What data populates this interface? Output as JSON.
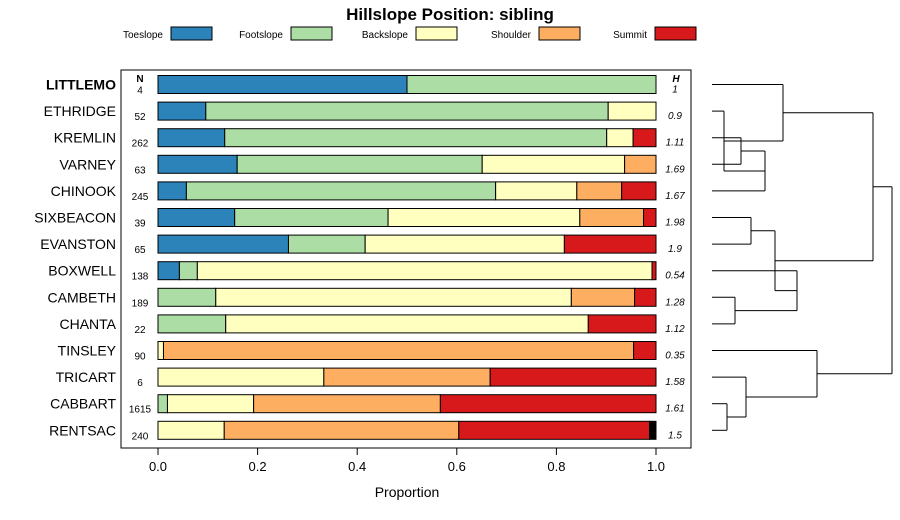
{
  "chart_data": {
    "type": "bar",
    "subtype": "stacked-horizontal",
    "title": "Hillslope Position: sibling",
    "xlabel": "Proportion",
    "ylabel": "",
    "xlim": [
      0,
      1
    ],
    "xticks": [
      "0.0",
      "0.2",
      "0.4",
      "0.6",
      "0.8",
      "1.0"
    ],
    "n_header": "N",
    "h_header": "H",
    "series": [
      {
        "name": "Toeslope",
        "color": "#2B83BA"
      },
      {
        "name": "Footslope",
        "color": "#ABDDA4"
      },
      {
        "name": "Backslope",
        "color": "#FFFFBF"
      },
      {
        "name": "Shoulder",
        "color": "#FDAE61"
      },
      {
        "name": "Summit",
        "color": "#D7191C"
      }
    ],
    "extra_color": "#000000",
    "rows": [
      {
        "label": "LITTLEMO",
        "n": "4",
        "h": "1",
        "bold": true,
        "values": [
          0.5,
          0.5,
          0.0,
          0.0,
          0.0,
          0.0
        ]
      },
      {
        "label": "ETHRIDGE",
        "n": "52",
        "h": "0.9",
        "bold": false,
        "values": [
          0.096,
          0.808,
          0.096,
          0.0,
          0.0,
          0.0
        ]
      },
      {
        "label": "KREMLIN",
        "n": "262",
        "h": "1.11",
        "bold": false,
        "values": [
          0.134,
          0.767,
          0.053,
          0.0,
          0.046,
          0.0
        ]
      },
      {
        "label": "VARNEY",
        "n": "63",
        "h": "1.69",
        "bold": false,
        "values": [
          0.159,
          0.492,
          0.286,
          0.063,
          0.0,
          0.0
        ]
      },
      {
        "label": "CHINOOK",
        "n": "245",
        "h": "1.67",
        "bold": false,
        "values": [
          0.057,
          0.621,
          0.163,
          0.09,
          0.069,
          0.0
        ]
      },
      {
        "label": "SIXBEACON",
        "n": "39",
        "h": "1.98",
        "bold": false,
        "values": [
          0.154,
          0.308,
          0.385,
          0.128,
          0.025,
          0.0
        ]
      },
      {
        "label": "EVANSTON",
        "n": "65",
        "h": "1.9",
        "bold": false,
        "values": [
          0.262,
          0.154,
          0.4,
          0.0,
          0.184,
          0.0
        ]
      },
      {
        "label": "BOXWELL",
        "n": "138",
        "h": "0.54",
        "bold": false,
        "values": [
          0.043,
          0.036,
          0.913,
          0.0,
          0.008,
          0.0
        ]
      },
      {
        "label": "CAMBETH",
        "n": "189",
        "h": "1.28",
        "bold": false,
        "values": [
          0.0,
          0.116,
          0.714,
          0.127,
          0.043,
          0.0
        ]
      },
      {
        "label": "CHANTA",
        "n": "22",
        "h": "1.12",
        "bold": false,
        "values": [
          0.0,
          0.136,
          0.728,
          0.0,
          0.136,
          0.0
        ]
      },
      {
        "label": "TINSLEY",
        "n": "90",
        "h": "0.35",
        "bold": false,
        "values": [
          0.0,
          0.0,
          0.011,
          0.944,
          0.045,
          0.0
        ]
      },
      {
        "label": "TRICART",
        "n": "6",
        "h": "1.58",
        "bold": false,
        "values": [
          0.0,
          0.0,
          0.333,
          0.334,
          0.333,
          0.0
        ]
      },
      {
        "label": "CABBART",
        "n": "1615",
        "h": "1.61",
        "bold": false,
        "values": [
          0.0,
          0.019,
          0.173,
          0.375,
          0.433,
          0.0
        ]
      },
      {
        "label": "RENTSAC",
        "n": "240",
        "h": "1.5",
        "bold": false,
        "values": [
          0.0,
          0.0,
          0.133,
          0.471,
          0.383,
          0.013
        ]
      }
    ]
  }
}
